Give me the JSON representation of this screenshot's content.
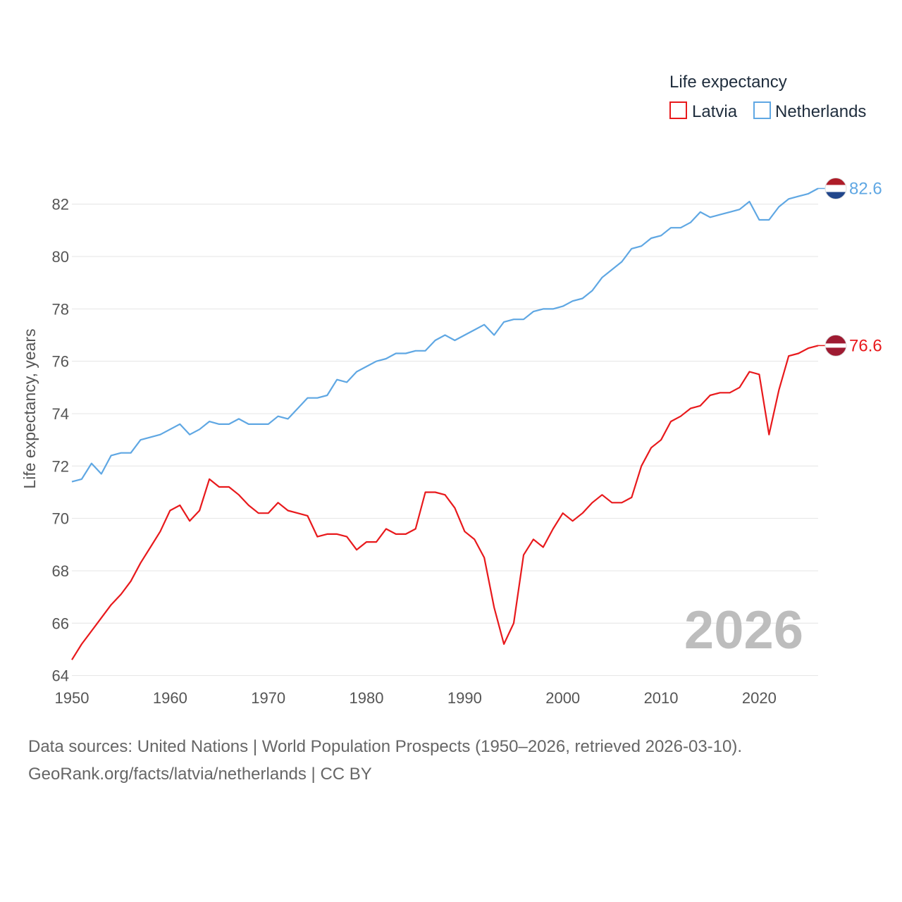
{
  "chart_data": {
    "type": "line",
    "title": "",
    "legend_title": "Life expectancy",
    "legend_position": "top-right",
    "xlabel": "",
    "ylabel": "Life expectancy, years",
    "xlim": [
      1950,
      2026
    ],
    "ylim": [
      63.8,
      83.5
    ],
    "x_ticks": [
      1950,
      1960,
      1970,
      1980,
      1990,
      2000,
      2010,
      2020
    ],
    "y_ticks": [
      64,
      66,
      68,
      70,
      72,
      74,
      76,
      78,
      80,
      82
    ],
    "grid": true,
    "year_label": "2026",
    "x": [
      1950,
      1951,
      1952,
      1953,
      1954,
      1955,
      1956,
      1957,
      1958,
      1959,
      1960,
      1961,
      1962,
      1963,
      1964,
      1965,
      1966,
      1967,
      1968,
      1969,
      1970,
      1971,
      1972,
      1973,
      1974,
      1975,
      1976,
      1977,
      1978,
      1979,
      1980,
      1981,
      1982,
      1983,
      1984,
      1985,
      1986,
      1987,
      1988,
      1989,
      1990,
      1991,
      1992,
      1993,
      1994,
      1995,
      1996,
      1997,
      1998,
      1999,
      2000,
      2001,
      2002,
      2003,
      2004,
      2005,
      2006,
      2007,
      2008,
      2009,
      2010,
      2011,
      2012,
      2013,
      2014,
      2015,
      2016,
      2017,
      2018,
      2019,
      2020,
      2021,
      2022,
      2023,
      2024,
      2025,
      2026
    ],
    "series": [
      {
        "name": "Latvia",
        "color": "#e8191c",
        "end_label": "76.6",
        "flag": "latvia-flag",
        "values": [
          64.6,
          65.2,
          65.7,
          66.2,
          66.7,
          67.1,
          67.6,
          68.3,
          68.9,
          69.5,
          70.3,
          70.5,
          69.9,
          70.3,
          71.5,
          71.2,
          71.2,
          70.9,
          70.5,
          70.2,
          70.2,
          70.6,
          70.3,
          70.2,
          70.1,
          69.3,
          69.4,
          69.4,
          69.3,
          68.8,
          69.1,
          69.1,
          69.6,
          69.4,
          69.4,
          69.6,
          71.0,
          71.0,
          70.9,
          70.4,
          69.5,
          69.2,
          68.5,
          66.6,
          65.2,
          66.0,
          68.6,
          69.2,
          68.9,
          69.6,
          70.2,
          69.9,
          70.2,
          70.6,
          70.9,
          70.6,
          70.6,
          70.8,
          72.0,
          72.7,
          73.0,
          73.7,
          73.9,
          74.2,
          74.3,
          74.7,
          74.8,
          74.8,
          75.0,
          75.6,
          75.5,
          73.2,
          74.9,
          76.2,
          76.3,
          76.5,
          76.6
        ]
      },
      {
        "name": "Netherlands",
        "color": "#5fa7e3",
        "end_label": "82.6",
        "flag": "netherlands-flag",
        "values": [
          71.4,
          71.5,
          72.1,
          71.7,
          72.4,
          72.5,
          72.5,
          73.0,
          73.1,
          73.2,
          73.4,
          73.6,
          73.2,
          73.4,
          73.7,
          73.6,
          73.6,
          73.8,
          73.6,
          73.6,
          73.6,
          73.9,
          73.8,
          74.2,
          74.6,
          74.6,
          74.7,
          75.3,
          75.2,
          75.6,
          75.8,
          76.0,
          76.1,
          76.3,
          76.3,
          76.4,
          76.4,
          76.8,
          77.0,
          76.8,
          77.0,
          77.2,
          77.4,
          77.0,
          77.5,
          77.6,
          77.6,
          77.9,
          78.0,
          78.0,
          78.1,
          78.3,
          78.4,
          78.7,
          79.2,
          79.5,
          79.8,
          80.3,
          80.4,
          80.7,
          80.8,
          81.1,
          81.1,
          81.3,
          81.7,
          81.5,
          81.6,
          81.7,
          81.8,
          82.1,
          81.4,
          81.4,
          81.9,
          82.2,
          82.3,
          82.4,
          82.6
        ]
      }
    ]
  },
  "footer": {
    "sources_line": "Data sources: United Nations | World Population Prospects (1950–2026, retrieved 2026-03-10).",
    "url_line": "GeoRank.org/facts/latvia/netherlands | CC BY"
  }
}
